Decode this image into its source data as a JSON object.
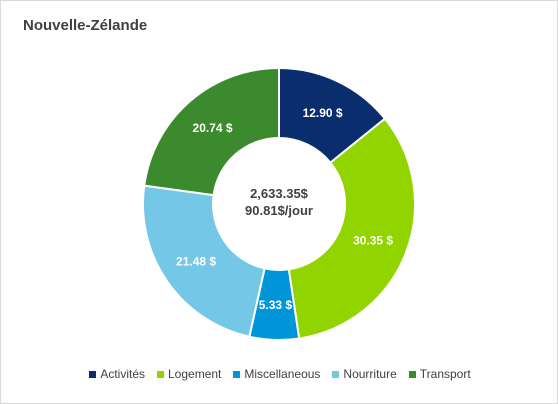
{
  "chart_data": {
    "type": "pie",
    "title": "Nouvelle-Zélande",
    "center_total": "2,633.35$",
    "center_per_day": "90.81$/jour",
    "categories": [
      "Activités",
      "Logement",
      "Miscellaneous",
      "Nourriture",
      "Transport"
    ],
    "values": [
      12.9,
      30.35,
      5.33,
      21.48,
      20.74
    ],
    "value_labels": [
      "12.90  $",
      "30.35  $",
      "5.33  $",
      "21.48  $",
      "20.74  $"
    ],
    "colors": [
      "#0a2d6e",
      "#92d400",
      "#0095d9",
      "#74c7e6",
      "#3c8a2e"
    ],
    "legend_position": "bottom",
    "grid": false
  }
}
